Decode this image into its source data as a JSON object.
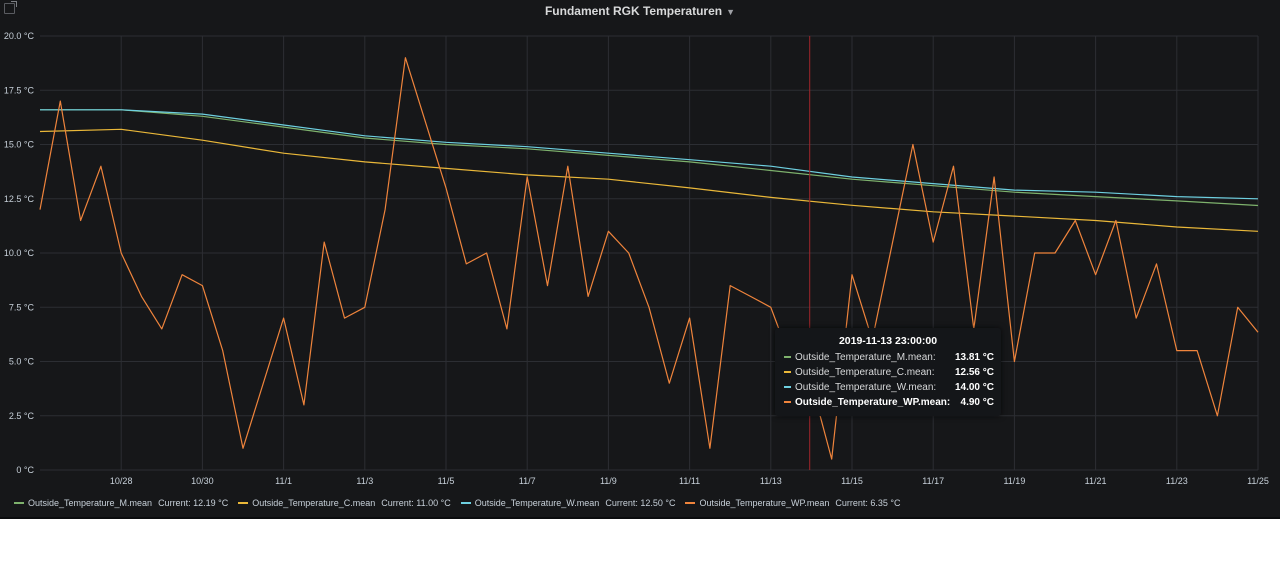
{
  "panel": {
    "title": "Fundament RGK Temperaturen"
  },
  "chart_data": {
    "type": "line",
    "title": "Fundament RGK Temperaturen",
    "x_range": [
      "2019-10-26",
      "2019-11-25"
    ],
    "ylim": [
      0,
      20
    ],
    "yticks": [
      "0 °C",
      "2.5 °C",
      "5.0 °C",
      "7.5 °C",
      "10.0 °C",
      "12.5 °C",
      "15.0 °C",
      "17.5 °C",
      "20.0 °C"
    ],
    "xticks": [
      "10/28",
      "10/30",
      "11/1",
      "11/3",
      "11/5",
      "11/7",
      "11/9",
      "11/11",
      "11/13",
      "11/15",
      "11/17",
      "11/19",
      "11/21",
      "11/23",
      "11/25"
    ],
    "grid": true,
    "legend": "bottom",
    "series": [
      {
        "name": "Outside_Temperature_M.mean",
        "color": "#7eb26d",
        "current": "Current: 12.19 °C",
        "x": [
          "2019-10-26",
          "2019-10-28",
          "2019-10-30",
          "2019-11-01",
          "2019-11-03",
          "2019-11-05",
          "2019-11-07",
          "2019-11-09",
          "2019-11-11",
          "2019-11-13",
          "2019-11-15",
          "2019-11-17",
          "2019-11-19",
          "2019-11-21",
          "2019-11-23",
          "2019-11-25"
        ],
        "values": [
          16.6,
          16.6,
          16.3,
          15.8,
          15.3,
          15.0,
          14.8,
          14.5,
          14.2,
          13.8,
          13.4,
          13.1,
          12.8,
          12.6,
          12.4,
          12.19
        ]
      },
      {
        "name": "Outside_Temperature_C.mean",
        "color": "#eab839",
        "current": "Current: 11.00 °C",
        "x": [
          "2019-10-26",
          "2019-10-28",
          "2019-10-30",
          "2019-11-01",
          "2019-11-03",
          "2019-11-05",
          "2019-11-07",
          "2019-11-09",
          "2019-11-11",
          "2019-11-13",
          "2019-11-15",
          "2019-11-17",
          "2019-11-19",
          "2019-11-21",
          "2019-11-23",
          "2019-11-25"
        ],
        "values": [
          15.6,
          15.7,
          15.2,
          14.6,
          14.2,
          13.9,
          13.6,
          13.4,
          13.0,
          12.56,
          12.2,
          11.9,
          11.7,
          11.5,
          11.2,
          11.0
        ]
      },
      {
        "name": "Outside_Temperature_W.mean",
        "color": "#6ed0e0",
        "current": "Current: 12.50 °C",
        "x": [
          "2019-10-26",
          "2019-10-28",
          "2019-10-30",
          "2019-11-01",
          "2019-11-03",
          "2019-11-05",
          "2019-11-07",
          "2019-11-09",
          "2019-11-11",
          "2019-11-13",
          "2019-11-15",
          "2019-11-17",
          "2019-11-19",
          "2019-11-21",
          "2019-11-23",
          "2019-11-25"
        ],
        "values": [
          16.6,
          16.6,
          16.4,
          15.9,
          15.4,
          15.1,
          14.9,
          14.6,
          14.3,
          14.0,
          13.5,
          13.2,
          12.9,
          12.8,
          12.6,
          12.5
        ]
      },
      {
        "name": "Outside_Temperature_WP.mean",
        "color": "#ef843c",
        "current": "Current: 6.35 °C",
        "x": [
          "2019-10-26",
          "2019-10-26T12",
          "2019-10-27",
          "2019-10-27T12",
          "2019-10-28",
          "2019-10-28T12",
          "2019-10-29",
          "2019-10-29T12",
          "2019-10-30",
          "2019-10-30T12",
          "2019-10-31",
          "2019-10-31T12",
          "2019-11-01",
          "2019-11-01T12",
          "2019-11-02",
          "2019-11-02T12",
          "2019-11-03",
          "2019-11-03T12",
          "2019-11-04",
          "2019-11-04T12",
          "2019-11-05",
          "2019-11-05T12",
          "2019-11-06",
          "2019-11-06T12",
          "2019-11-07",
          "2019-11-07T12",
          "2019-11-08",
          "2019-11-08T12",
          "2019-11-09",
          "2019-11-09T12",
          "2019-11-10",
          "2019-11-10T12",
          "2019-11-11",
          "2019-11-11T12",
          "2019-11-12",
          "2019-11-12T12",
          "2019-11-13",
          "2019-11-13T12",
          "2019-11-14",
          "2019-11-14T12",
          "2019-11-15",
          "2019-11-15T12",
          "2019-11-16",
          "2019-11-16T12",
          "2019-11-17",
          "2019-11-17T12",
          "2019-11-18",
          "2019-11-18T12",
          "2019-11-19",
          "2019-11-19T12",
          "2019-11-20",
          "2019-11-20T12",
          "2019-11-21",
          "2019-11-21T12",
          "2019-11-22",
          "2019-11-22T12",
          "2019-11-23",
          "2019-11-23T12",
          "2019-11-24",
          "2019-11-24T12",
          "2019-11-25"
        ],
        "values": [
          12.0,
          17.0,
          11.5,
          14.0,
          10.0,
          8.0,
          6.5,
          9.0,
          8.5,
          5.5,
          1.0,
          4.0,
          7.0,
          3.0,
          10.5,
          7.0,
          7.5,
          12.0,
          19.0,
          16.0,
          13.0,
          9.5,
          10.0,
          6.5,
          13.5,
          8.5,
          14.0,
          8.0,
          11.0,
          10.0,
          7.5,
          4.0,
          7.0,
          1.0,
          8.5,
          8.0,
          7.5,
          5.0,
          4.0,
          0.5,
          9.0,
          6.0,
          10.5,
          15.0,
          10.5,
          14.0,
          6.5,
          13.5,
          5.0,
          10.0,
          10.0,
          11.5,
          9.0,
          11.5,
          7.0,
          9.5,
          5.5,
          5.5,
          2.5,
          7.5,
          6.35
        ]
      }
    ]
  },
  "tooltip": {
    "time": "2019-11-13 23:00:00",
    "rows": [
      {
        "name": "Outside_Temperature_M.mean:",
        "value": "13.81 °C",
        "color": "#7eb26d"
      },
      {
        "name": "Outside_Temperature_C.mean:",
        "value": "12.56 °C",
        "color": "#eab839"
      },
      {
        "name": "Outside_Temperature_W.mean:",
        "value": "14.00 °C",
        "color": "#6ed0e0"
      },
      {
        "name": "Outside_Temperature_WP.mean:",
        "value": "4.90 °C",
        "color": "#ef843c"
      }
    ]
  }
}
